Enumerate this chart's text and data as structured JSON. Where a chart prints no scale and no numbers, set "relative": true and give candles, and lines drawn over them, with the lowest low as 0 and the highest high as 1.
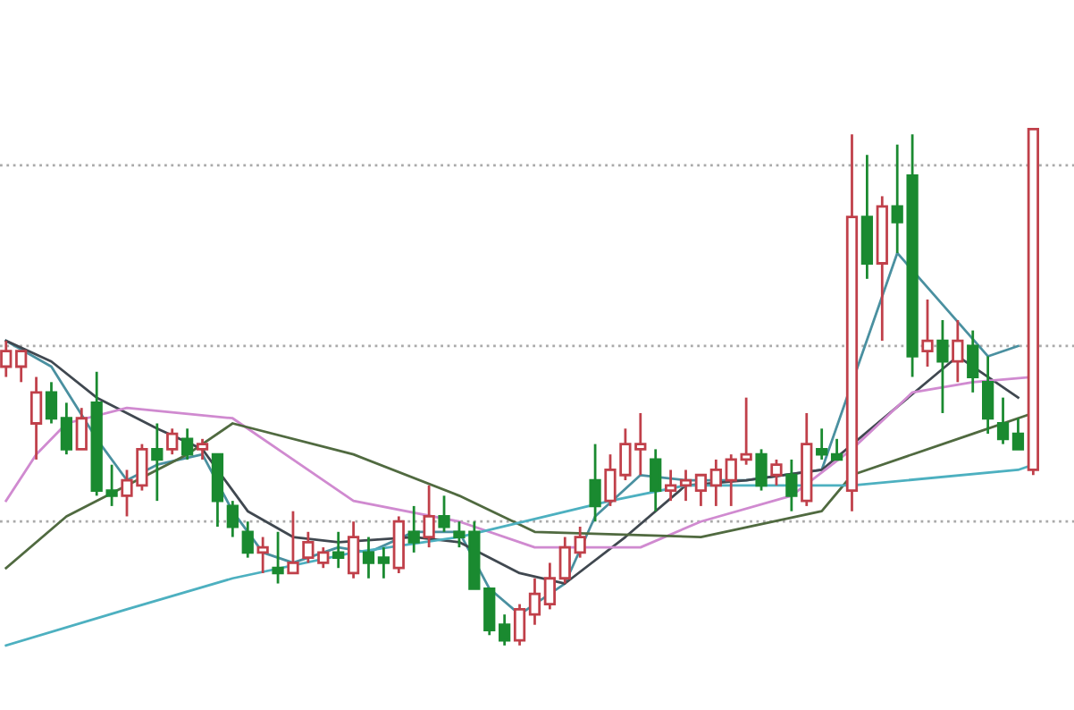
{
  "chart_data": {
    "type": "candlestick",
    "relative": true,
    "categories": [
      null,
      null,
      null,
      null,
      null,
      null,
      null,
      null,
      null,
      null,
      null,
      null,
      null,
      null,
      null,
      null,
      null,
      null,
      null,
      null,
      null,
      null,
      null,
      null,
      null,
      null,
      null,
      null,
      null,
      null,
      null,
      null,
      null,
      null,
      null,
      null,
      null,
      null,
      null,
      null,
      null,
      null,
      null,
      null,
      null,
      null,
      null,
      null,
      null,
      null,
      null,
      null,
      null,
      null,
      null,
      null,
      null,
      null,
      null,
      null,
      null,
      null,
      null,
      null,
      null,
      null,
      null,
      null,
      null
    ],
    "ohlc": [
      [
        0.54,
        0.59,
        0.52,
        0.57
      ],
      [
        0.54,
        0.57,
        0.51,
        0.57
      ],
      [
        0.43,
        0.52,
        0.36,
        0.49
      ],
      [
        0.49,
        0.51,
        0.43,
        0.44
      ],
      [
        0.44,
        0.47,
        0.37,
        0.38
      ],
      [
        0.38,
        0.46,
        0.38,
        0.44
      ],
      [
        0.47,
        0.53,
        0.29,
        0.3
      ],
      [
        0.3,
        0.35,
        0.27,
        0.29
      ],
      [
        0.29,
        0.34,
        0.25,
        0.32
      ],
      [
        0.31,
        0.39,
        0.3,
        0.38
      ],
      [
        0.38,
        0.43,
        0.28,
        0.36
      ],
      [
        0.38,
        0.42,
        0.37,
        0.41
      ],
      [
        0.4,
        0.42,
        0.36,
        0.37
      ],
      [
        0.38,
        0.4,
        0.36,
        0.39
      ],
      [
        0.37,
        0.37,
        0.23,
        0.28
      ],
      [
        0.27,
        0.28,
        0.21,
        0.23
      ],
      [
        0.22,
        0.24,
        0.17,
        0.18
      ],
      [
        0.18,
        0.21,
        0.14,
        0.19
      ],
      [
        0.15,
        0.22,
        0.12,
        0.14
      ],
      [
        0.14,
        0.26,
        0.14,
        0.16
      ],
      [
        0.17,
        0.22,
        0.16,
        0.2
      ],
      [
        0.16,
        0.19,
        0.15,
        0.18
      ],
      [
        0.18,
        0.22,
        0.15,
        0.17
      ],
      [
        0.14,
        0.24,
        0.13,
        0.21
      ],
      [
        0.18,
        0.21,
        0.13,
        0.16
      ],
      [
        0.17,
        0.19,
        0.13,
        0.16
      ],
      [
        0.15,
        0.25,
        0.14,
        0.24
      ],
      [
        0.22,
        0.27,
        0.18,
        0.2
      ],
      [
        0.21,
        0.31,
        0.19,
        0.25
      ],
      [
        0.25,
        0.29,
        0.22,
        0.23
      ],
      [
        0.22,
        0.24,
        0.19,
        0.21
      ],
      [
        0.22,
        0.24,
        0.11,
        0.11
      ],
      [
        0.11,
        0.11,
        0.02,
        0.03
      ],
      [
        0.04,
        0.06,
        0.0,
        0.01
      ],
      [
        0.01,
        0.08,
        0.0,
        0.07
      ],
      [
        0.06,
        0.13,
        0.04,
        0.1
      ],
      [
        0.08,
        0.16,
        0.07,
        0.13
      ],
      [
        0.13,
        0.21,
        0.12,
        0.19
      ],
      [
        0.18,
        0.23,
        0.17,
        0.21
      ],
      [
        0.32,
        0.39,
        0.24,
        0.27
      ],
      [
        0.28,
        0.37,
        0.27,
        0.34
      ],
      [
        0.33,
        0.42,
        0.32,
        0.39
      ],
      [
        0.38,
        0.45,
        0.33,
        0.39
      ],
      [
        0.36,
        0.38,
        0.26,
        0.3
      ],
      [
        0.3,
        0.34,
        0.28,
        0.31
      ],
      [
        0.31,
        0.34,
        0.28,
        0.32
      ],
      [
        0.3,
        0.33,
        0.27,
        0.33
      ],
      [
        0.31,
        0.36,
        0.27,
        0.34
      ],
      [
        0.32,
        0.37,
        0.27,
        0.36
      ],
      [
        0.36,
        0.48,
        0.35,
        0.37
      ],
      [
        0.37,
        0.38,
        0.3,
        0.31
      ],
      [
        0.33,
        0.36,
        0.31,
        0.35
      ],
      [
        0.33,
        0.36,
        0.26,
        0.29
      ],
      [
        0.28,
        0.45,
        0.27,
        0.39
      ],
      [
        0.38,
        0.42,
        0.36,
        0.37
      ],
      [
        0.37,
        0.4,
        0.36,
        0.36
      ],
      [
        0.3,
        0.99,
        0.26,
        0.83
      ],
      [
        0.83,
        0.95,
        0.71,
        0.74
      ],
      [
        0.74,
        0.87,
        0.59,
        0.85
      ],
      [
        0.85,
        0.97,
        0.76,
        0.82
      ],
      [
        0.91,
        0.99,
        0.52,
        0.56
      ],
      [
        0.57,
        0.67,
        0.54,
        0.59
      ],
      [
        0.59,
        0.63,
        0.45,
        0.55
      ],
      [
        0.55,
        0.63,
        0.51,
        0.59
      ],
      [
        0.58,
        0.61,
        0.49,
        0.52
      ],
      [
        0.51,
        0.56,
        0.41,
        0.44
      ],
      [
        0.43,
        0.48,
        0.39,
        0.4
      ],
      [
        0.41,
        0.44,
        0.38,
        0.38
      ],
      [
        0.34,
        1.0,
        0.33,
        1.0
      ]
    ],
    "colors": [
      "#c0404a",
      "#c0404a",
      "#c0404a",
      "#1a8a30",
      "#1a8a30",
      "#c0404a",
      "#1a8a30",
      "#1a8a30",
      "#c0404a",
      "#c0404a",
      "#1a8a30",
      "#c0404a",
      "#1a8a30",
      "#c0404a",
      "#1a8a30",
      "#1a8a30",
      "#1a8a30",
      "#c0404a",
      "#1a8a30",
      "#c0404a",
      "#c0404a",
      "#c0404a",
      "#1a8a30",
      "#c0404a",
      "#1a8a30",
      "#1a8a30",
      "#c0404a",
      "#1a8a30",
      "#c0404a",
      "#1a8a30",
      "#1a8a30",
      "#1a8a30",
      "#1a8a30",
      "#1a8a30",
      "#c0404a",
      "#c0404a",
      "#c0404a",
      "#c0404a",
      "#c0404a",
      "#1a8a30",
      "#c0404a",
      "#c0404a",
      "#c0404a",
      "#1a8a30",
      "#c0404a",
      "#c0404a",
      "#c0404a",
      "#c0404a",
      "#c0404a",
      "#c0404a",
      "#1a8a30",
      "#c0404a",
      "#1a8a30",
      "#c0404a",
      "#1a8a30",
      "#1a8a30",
      "#c0404a",
      "#1a8a30",
      "#c0404a",
      "#1a8a30",
      "#1a8a30",
      "#c0404a",
      "#1a8a30",
      "#c0404a",
      "#1a8a30",
      "#1a8a30",
      "#1a8a30",
      "#1a8a30",
      "#c0404a"
    ],
    "series": [
      {
        "type": "line",
        "color": "#4a90a0",
        "values": [
          0.59,
          null,
          null,
          0.54,
          null,
          null,
          0.4,
          null,
          0.32,
          null,
          0.35,
          null,
          null,
          0.37,
          null,
          0.26,
          null,
          0.18,
          null,
          0.16,
          null,
          null,
          0.19,
          null,
          0.18,
          null,
          null,
          0.22,
          null,
          null,
          0.22,
          null,
          0.11,
          null,
          0.06,
          null,
          null,
          0.12,
          null,
          0.25,
          null,
          null,
          0.33,
          null,
          null,
          0.32,
          null,
          null,
          null,
          0.32,
          null,
          null,
          null,
          null,
          0.34,
          null,
          null,
          null,
          null,
          0.76,
          null,
          null,
          0.66,
          null,
          null,
          0.56,
          null,
          0.58,
          null
        ]
      },
      {
        "type": "line",
        "color": "#404850",
        "values": [
          0.59,
          null,
          null,
          0.55,
          null,
          null,
          0.48,
          null,
          null,
          null,
          0.42,
          null,
          null,
          0.38,
          null,
          null,
          0.26,
          null,
          null,
          0.21,
          null,
          null,
          0.2,
          null,
          null,
          null,
          null,
          0.21,
          null,
          null,
          0.2,
          null,
          null,
          null,
          0.14,
          null,
          null,
          0.12,
          null,
          null,
          null,
          0.21,
          null,
          null,
          null,
          0.31,
          null,
          null,
          null,
          0.32,
          null,
          null,
          null,
          null,
          0.34,
          null,
          null,
          null,
          null,
          null,
          null,
          null,
          null,
          0.56,
          null,
          null,
          null,
          0.48,
          null
        ]
      },
      {
        "type": "line",
        "color": "#d08ad0",
        "values": [
          0.28,
          null,
          0.37,
          null,
          0.43,
          null,
          null,
          null,
          0.46,
          null,
          null,
          null,
          null,
          null,
          null,
          0.44,
          null,
          null,
          null,
          null,
          null,
          null,
          null,
          0.28,
          null,
          null,
          null,
          null,
          null,
          null,
          0.24,
          null,
          null,
          null,
          null,
          0.19,
          null,
          null,
          null,
          null,
          null,
          null,
          0.19,
          null,
          null,
          null,
          0.24,
          null,
          null,
          null,
          null,
          null,
          0.29,
          null,
          null,
          null,
          0.38,
          null,
          null,
          null,
          0.49,
          null,
          null,
          null,
          0.51,
          null,
          null,
          null,
          0.52
        ]
      },
      {
        "type": "line",
        "color": "#506a40",
        "values": [
          0.15,
          null,
          null,
          null,
          0.25,
          null,
          null,
          null,
          null,
          null,
          null,
          null,
          0.37,
          null,
          null,
          0.43,
          null,
          null,
          null,
          null,
          null,
          null,
          null,
          0.37,
          null,
          null,
          null,
          null,
          null,
          null,
          0.29,
          null,
          null,
          null,
          null,
          0.22,
          null,
          null,
          null,
          null,
          null,
          null,
          null,
          null,
          null,
          null,
          0.21,
          null,
          null,
          null,
          null,
          null,
          null,
          null,
          0.26,
          null,
          0.33,
          null,
          null,
          null,
          null,
          null,
          null,
          null,
          0.41,
          null,
          null,
          null,
          0.45
        ]
      },
      {
        "type": "line",
        "color": "#4db0c0",
        "values": [
          0.0,
          null,
          null,
          null,
          null,
          null,
          null,
          null,
          0.07,
          null,
          null,
          null,
          null,
          null,
          null,
          0.13,
          null,
          null,
          null,
          null,
          null,
          null,
          null,
          0.18,
          null,
          null,
          null,
          null,
          null,
          null,
          0.21,
          null,
          null,
          null,
          null,
          null,
          null,
          null,
          null,
          null,
          0.28,
          null,
          null,
          null,
          null,
          0.31,
          null,
          null,
          null,
          null,
          null,
          null,
          null,
          null,
          null,
          null,
          0.31,
          null,
          null,
          null,
          null,
          null,
          null,
          null,
          null,
          null,
          null,
          0.34,
          0.35
        ]
      }
    ],
    "ref_lines": [
      {
        "axis": "y",
        "value": 0.93,
        "color": "#aaaaaa",
        "line_style": "dotted"
      },
      {
        "axis": "y",
        "value": 0.58,
        "color": "#aaaaaa",
        "line_style": "dotted"
      },
      {
        "axis": "y",
        "value": 0.24,
        "color": "#aaaaaa",
        "line_style": "dotted"
      }
    ]
  }
}
